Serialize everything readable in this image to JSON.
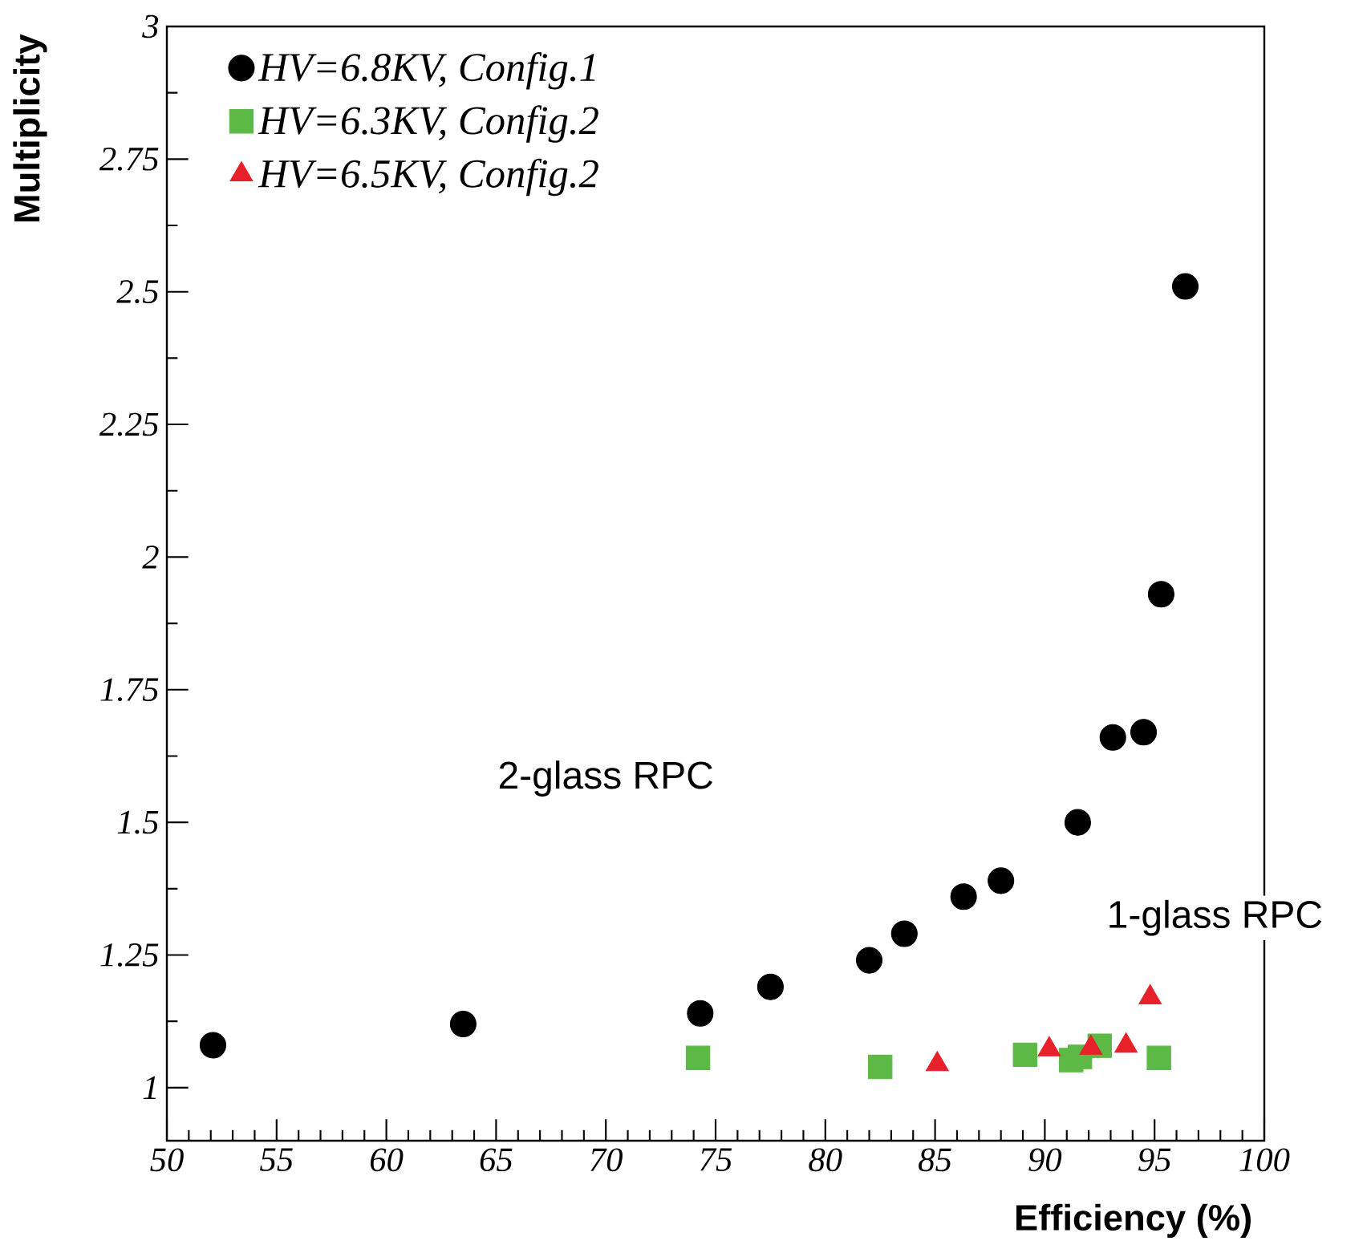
{
  "chart_data": {
    "type": "scatter",
    "xlabel": "Efficiency (%)",
    "ylabel": "Multiplicity",
    "xlim": [
      50,
      100
    ],
    "ylim": [
      0.9,
      3
    ],
    "xticks": [
      50,
      55,
      60,
      65,
      70,
      75,
      80,
      85,
      90,
      95,
      100
    ],
    "yticks": [
      1,
      1.25,
      1.5,
      1.75,
      2,
      2.25,
      2.5,
      2.75,
      3
    ],
    "legend": "top left",
    "grid": false,
    "series": [
      {
        "name": "HV=6.8KV, Config.1",
        "color": "#000000",
        "marker": "circle",
        "x": [
          52.1,
          63.5,
          74.3,
          77.5,
          82.0,
          83.6,
          86.3,
          88.0,
          91.5,
          93.1,
          94.5,
          95.3,
          96.4
        ],
        "values": [
          1.08,
          1.12,
          1.14,
          1.19,
          1.24,
          1.29,
          1.36,
          1.39,
          1.5,
          1.66,
          1.67,
          1.93,
          2.51
        ]
      },
      {
        "name": "HV=6.3KV, Config.2",
        "color": "#5cb946",
        "marker": "square",
        "x": [
          74.2,
          82.5,
          89.1,
          91.2,
          91.6,
          92.5,
          95.2
        ],
        "values": [
          1.056,
          1.039,
          1.062,
          1.052,
          1.058,
          1.079,
          1.056
        ]
      },
      {
        "name": "HV=6.5KV, Config.2",
        "color": "#e8202a",
        "marker": "triangle",
        "x": [
          85.1,
          90.2,
          92.1,
          93.7,
          94.8
        ],
        "values": [
          1.044,
          1.072,
          1.075,
          1.079,
          1.17
        ]
      }
    ],
    "annotations": [
      "2-glass RPC",
      "1-glass RPC"
    ]
  }
}
